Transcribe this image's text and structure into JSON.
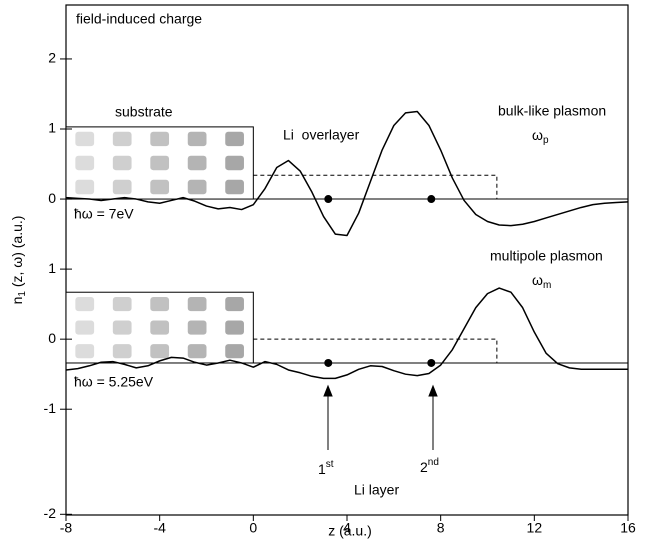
{
  "chart_data": {
    "type": "line",
    "x_label": "z (a.u.)",
    "y_label": {
      "main": "n",
      "sub": "1",
      "rest": " (z, ω) (a.u.)"
    },
    "annotations": {
      "field": "field-induced charge",
      "substrate": "substrate",
      "overlayer": "Li  overlayer",
      "bulk": "bulk-like plasmon",
      "omega_p": {
        "main": "ω",
        "sub": "p"
      },
      "hw1": "ħω = 7eV",
      "multipole": "multipole plasmon",
      "omega_m": {
        "main": "ω",
        "sub": "m"
      },
      "hw2": "ħω = 5.25eV",
      "first": {
        "main": "1",
        "sup": "st"
      },
      "second": {
        "main": "2",
        "sup": "nd"
      },
      "li_layer": "Li layer"
    },
    "xlim": [
      -8,
      16
    ],
    "xticks": [
      -8,
      -4,
      0,
      4,
      8,
      12,
      16
    ],
    "ylim": [
      -4.51,
      2.77
    ],
    "yticks": [
      2,
      1,
      0,
      {
        "value": -1,
        "label": "1"
      },
      {
        "value": -2,
        "label": "0"
      },
      {
        "value": -3,
        "label": "-1"
      },
      {
        "value": -4.5,
        "label": "-2"
      }
    ],
    "x": [
      -8,
      -7.5,
      -7,
      -6.5,
      -6,
      -5.5,
      -5,
      -4.5,
      -4,
      -3.5,
      -3,
      -2.5,
      -2,
      -1.5,
      -1,
      -0.5,
      0,
      0.5,
      1,
      1.5,
      2,
      2.5,
      3,
      3.5,
      4,
      4.5,
      5,
      5.5,
      6,
      6.5,
      7,
      7.5,
      8,
      8.5,
      9,
      9.5,
      10,
      10.5,
      11,
      11.5,
      12,
      12.5,
      13,
      13.5,
      14,
      14.5,
      15,
      15.5,
      16
    ],
    "series": [
      {
        "color": "#000000",
        "values": [
          0.02,
          0.01,
          0,
          -0.02,
          0,
          0.02,
          0,
          -0.04,
          -0.06,
          -0.02,
          0.02,
          -0.03,
          -0.1,
          -0.14,
          -0.12,
          -0.15,
          -0.08,
          0.15,
          0.45,
          0.55,
          0.4,
          0.1,
          -0.25,
          -0.5,
          -0.52,
          -0.2,
          0.25,
          0.7,
          1.05,
          1.23,
          1.25,
          1.05,
          0.7,
          0.3,
          -0.02,
          -0.22,
          -0.32,
          -0.37,
          -0.38,
          -0.36,
          -0.32,
          -0.27,
          -0.22,
          -0.17,
          -0.12,
          -0.08,
          -0.06,
          -0.05,
          -0.04
        ]
      },
      {
        "color": "#000000",
        "values": [
          -2.44,
          -2.42,
          -2.38,
          -2.33,
          -2.32,
          -2.36,
          -2.41,
          -2.38,
          -2.31,
          -2.26,
          -2.27,
          -2.33,
          -2.37,
          -2.34,
          -2.3,
          -2.34,
          -2.4,
          -2.32,
          -2.36,
          -2.44,
          -2.48,
          -2.53,
          -2.56,
          -2.56,
          -2.51,
          -2.43,
          -2.38,
          -2.39,
          -2.45,
          -2.5,
          -2.52,
          -2.49,
          -2.37,
          -2.15,
          -1.85,
          -1.55,
          -1.35,
          -1.27,
          -1.33,
          -1.55,
          -1.9,
          -2.2,
          -2.35,
          -2.41,
          -2.43,
          -2.43,
          -2.43,
          -2.43,
          -2.43
        ]
      }
    ],
    "baselines": [
      0,
      -2.34
    ],
    "overlayer": {
      "x": [
        0,
        10.4
      ],
      "tops": [
        0.34,
        -2.0
      ]
    },
    "substrate_tops": [
      1.03,
      -1.33
    ],
    "atoms_x": [
      3.2,
      7.6
    ]
  }
}
